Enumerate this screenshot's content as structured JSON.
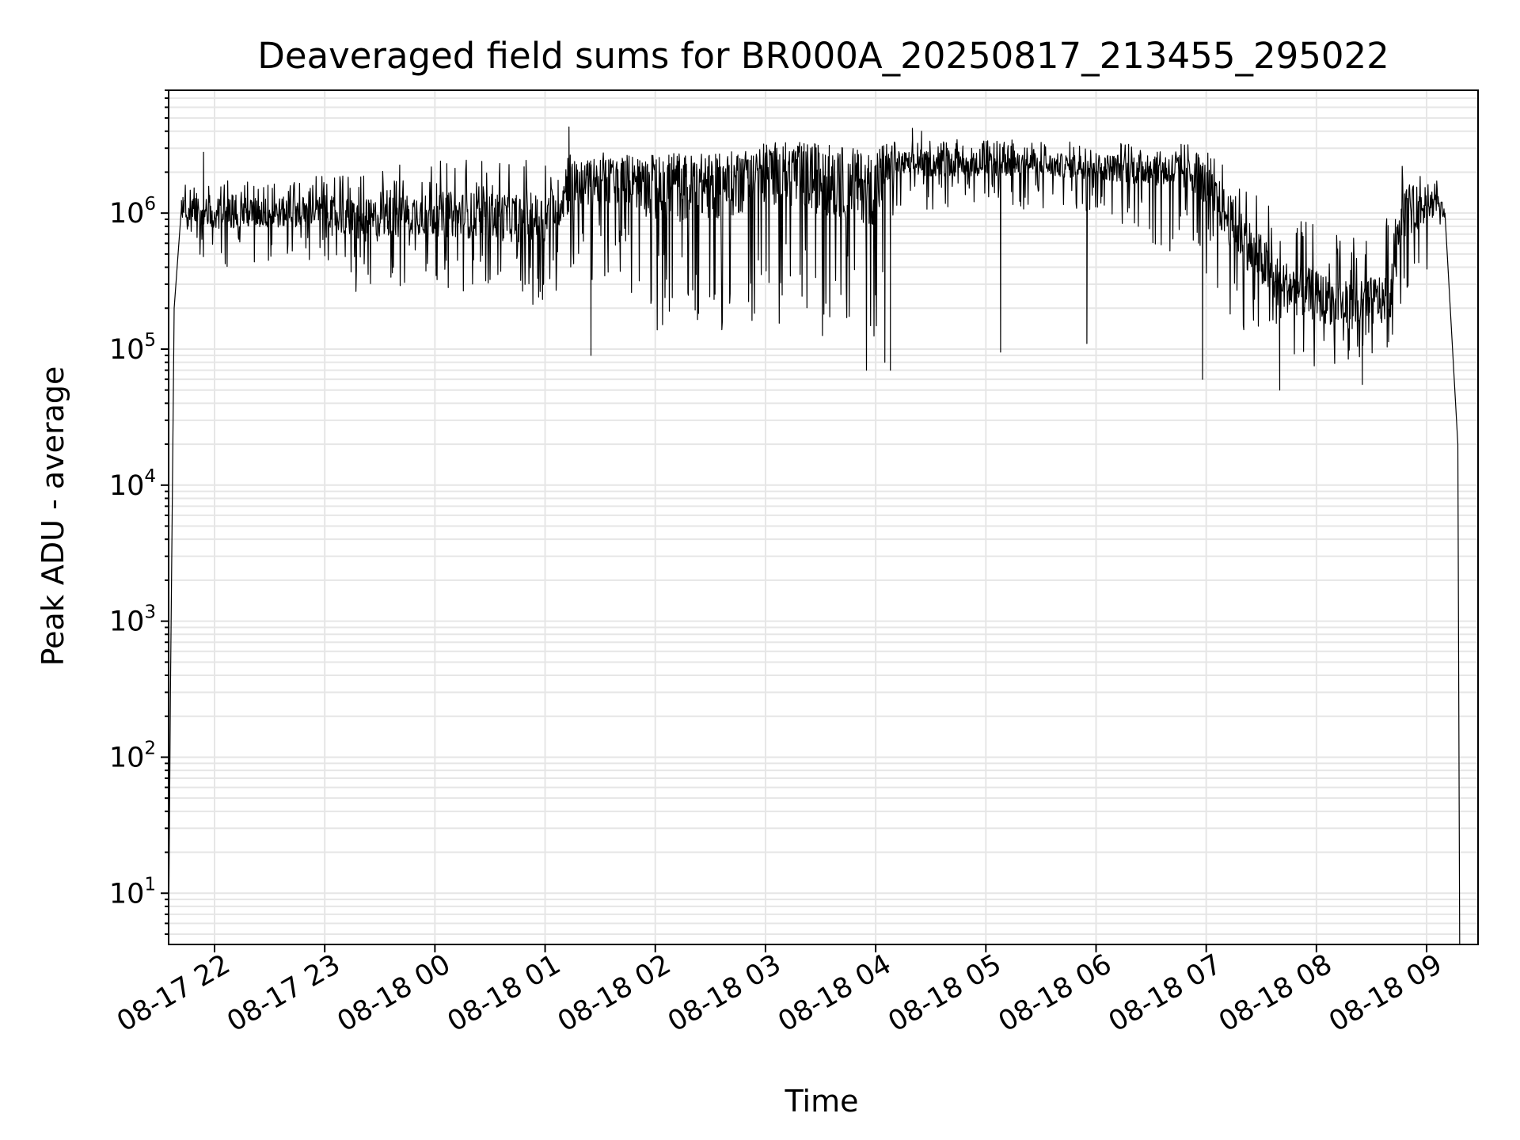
{
  "chart_data": {
    "type": "line",
    "title": "Deaveraged field sums for BR000A_20250817_213455_295022",
    "xlabel": "Time",
    "ylabel": "Peak ADU - average",
    "yscale": "log",
    "ylim": [
      4.2,
      8000000
    ],
    "xlim": [
      "2025-08-17 21:35",
      "2025-08-18 09:28"
    ],
    "grid": true,
    "line_color": "#000000",
    "x_ticks": [
      {
        "value": "2025-08-17 22:00",
        "label": "08-17 22"
      },
      {
        "value": "2025-08-17 23:00",
        "label": "08-17 23"
      },
      {
        "value": "2025-08-18 00:00",
        "label": "08-18 00"
      },
      {
        "value": "2025-08-18 01:00",
        "label": "08-18 01"
      },
      {
        "value": "2025-08-18 02:00",
        "label": "08-18 02"
      },
      {
        "value": "2025-08-18 03:00",
        "label": "08-18 03"
      },
      {
        "value": "2025-08-18 04:00",
        "label": "08-18 04"
      },
      {
        "value": "2025-08-18 05:00",
        "label": "08-18 05"
      },
      {
        "value": "2025-08-18 06:00",
        "label": "08-18 06"
      },
      {
        "value": "2025-08-18 07:00",
        "label": "08-18 07"
      },
      {
        "value": "2025-08-18 08:00",
        "label": "08-18 08"
      },
      {
        "value": "2025-08-18 09:00",
        "label": "08-18 09"
      }
    ],
    "y_ticks": [
      {
        "value": 10,
        "base": "10",
        "exp": "1"
      },
      {
        "value": 100,
        "base": "10",
        "exp": "2"
      },
      {
        "value": 1000,
        "base": "10",
        "exp": "3"
      },
      {
        "value": 10000,
        "base": "10",
        "exp": "4"
      },
      {
        "value": 100000,
        "base": "10",
        "exp": "5"
      },
      {
        "value": 1000000,
        "base": "10",
        "exp": "6"
      }
    ],
    "profile": [
      {
        "time": "2025-08-17 21:35",
        "median": 5,
        "low": 5,
        "high": 5
      },
      {
        "time": "2025-08-17 21:36",
        "median": 300,
        "low": 300,
        "high": 140000
      },
      {
        "time": "2025-08-17 21:38",
        "median": 200000,
        "low": 110000,
        "high": 300000
      },
      {
        "time": "2025-08-17 21:42",
        "median": 1100000,
        "low": 600000,
        "high": 1600000
      },
      {
        "time": "2025-08-17 22:00",
        "median": 1000000,
        "low": 400000,
        "high": 1800000
      },
      {
        "time": "2025-08-17 22:30",
        "median": 1000000,
        "low": 400000,
        "high": 1800000
      },
      {
        "time": "2025-08-17 23:00",
        "median": 1050000,
        "low": 450000,
        "high": 1900000
      },
      {
        "time": "2025-08-17 23:20",
        "median": 850000,
        "low": 230000,
        "high": 2000000
      },
      {
        "time": "2025-08-17 23:50",
        "median": 1000000,
        "low": 300000,
        "high": 2500000
      },
      {
        "time": "2025-08-18 00:30",
        "median": 950000,
        "low": 250000,
        "high": 2500000
      },
      {
        "time": "2025-08-18 01:00",
        "median": 900000,
        "low": 200000,
        "high": 2500000
      },
      {
        "time": "2025-08-18 01:15",
        "median": 1600000,
        "low": 300000,
        "high": 2800000
      },
      {
        "time": "2025-08-18 01:45",
        "median": 1800000,
        "low": 250000,
        "high": 2800000
      },
      {
        "time": "2025-08-18 02:00",
        "median": 1500000,
        "low": 100000,
        "high": 2800000
      },
      {
        "time": "2025-08-18 02:40",
        "median": 1600000,
        "low": 110000,
        "high": 2800000
      },
      {
        "time": "2025-08-18 03:00",
        "median": 2000000,
        "low": 150000,
        "high": 3000000
      },
      {
        "time": "2025-08-18 03:30",
        "median": 1800000,
        "low": 100000,
        "high": 3200000
      },
      {
        "time": "2025-08-18 04:00",
        "median": 1500000,
        "low": 90000,
        "high": 3000000
      },
      {
        "time": "2025-08-18 04:10",
        "median": 2300000,
        "low": 1000000,
        "high": 3500000
      },
      {
        "time": "2025-08-18 05:00",
        "median": 2300000,
        "low": 1100000,
        "high": 3500000
      },
      {
        "time": "2025-08-18 06:00",
        "median": 2200000,
        "low": 1000000,
        "high": 3300000
      },
      {
        "time": "2025-08-18 06:55",
        "median": 2000000,
        "low": 400000,
        "high": 3200000
      },
      {
        "time": "2025-08-18 07:15",
        "median": 800000,
        "low": 150000,
        "high": 2000000
      },
      {
        "time": "2025-08-18 07:40",
        "median": 300000,
        "low": 80000,
        "high": 1000000
      },
      {
        "time": "2025-08-18 08:20",
        "median": 200000,
        "low": 65000,
        "high": 700000
      },
      {
        "time": "2025-08-18 08:40",
        "median": 250000,
        "low": 90000,
        "high": 1000000
      },
      {
        "time": "2025-08-18 08:45",
        "median": 1000000,
        "low": 150000,
        "high": 2500000
      },
      {
        "time": "2025-08-18 09:05",
        "median": 1200000,
        "low": 500000,
        "high": 1900000
      },
      {
        "time": "2025-08-18 09:10",
        "median": 1000000,
        "low": 800000,
        "high": 1300000
      },
      {
        "time": "2025-08-18 09:17",
        "median": 20000,
        "low": 20000,
        "high": 20000
      },
      {
        "time": "2025-08-18 09:18",
        "median": 4,
        "low": 4,
        "high": 4
      }
    ],
    "spikes": [
      {
        "time": "2025-08-17 21:54",
        "value": 2800000
      },
      {
        "time": "2025-08-18 01:13",
        "value": 4300000
      },
      {
        "time": "2025-08-18 01:25",
        "value": 90000
      },
      {
        "time": "2025-08-18 03:55",
        "value": 70000
      },
      {
        "time": "2025-08-18 04:20",
        "value": 4200000
      },
      {
        "time": "2025-08-18 04:25",
        "value": 4000000
      },
      {
        "time": "2025-08-18 04:08",
        "value": 500000
      },
      {
        "time": "2025-08-18 04:08",
        "value": 70000
      },
      {
        "time": "2025-08-18 04:05",
        "value": 80000
      },
      {
        "time": "2025-08-18 05:08",
        "value": 95000
      },
      {
        "time": "2025-08-18 05:55",
        "value": 110000
      },
      {
        "time": "2025-08-18 06:58",
        "value": 60000
      },
      {
        "time": "2025-08-18 07:40",
        "value": 50000
      },
      {
        "time": "2025-08-18 08:25",
        "value": 55000
      }
    ]
  }
}
